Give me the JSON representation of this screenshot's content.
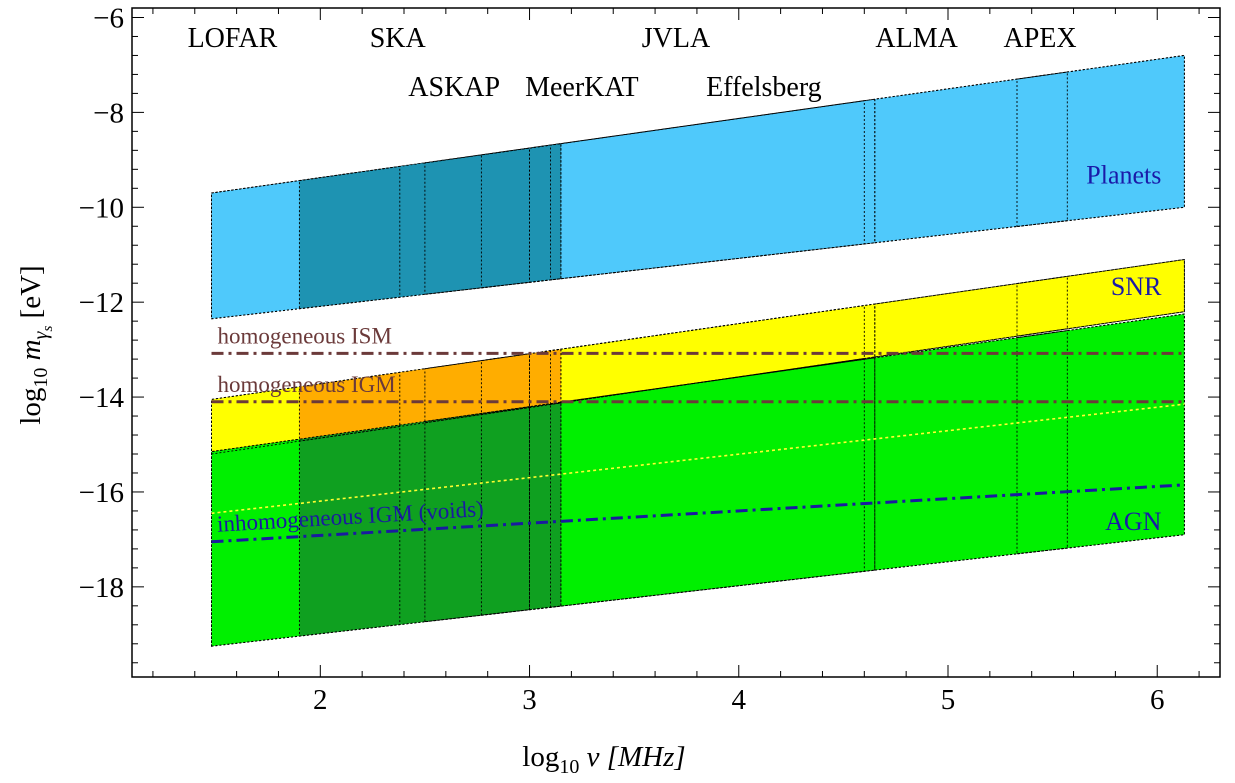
{
  "chart_data": {
    "type": "area",
    "title": "",
    "xlabel_parts": [
      "log",
      "10",
      " ν [MHz]"
    ],
    "ylabel_parts": [
      "log",
      "10",
      " m",
      "γ",
      "s",
      " [eV]"
    ],
    "xlim": [
      1.1,
      6.3
    ],
    "ylim": [
      -19.9,
      -5.8
    ],
    "x_ticks": [
      2,
      3,
      4,
      5,
      6
    ],
    "y_ticks": [
      -18,
      -16,
      -14,
      -12,
      -10,
      -8,
      -6
    ],
    "x_tick_labels": [
      "2",
      "3",
      "4",
      "5",
      "6"
    ],
    "y_tick_labels": [
      "−18",
      "−16",
      "−14",
      "−12",
      "−10",
      "−8",
      "−6"
    ],
    "telescopes": [
      {
        "name": "LOFAR",
        "x_range": [
          1.48,
          2.38
        ]
      },
      {
        "name": "SKA",
        "x_range": [
          1.9,
          3.15
        ]
      },
      {
        "name": "ASKAP",
        "x_range": [
          2.5,
          3.0
        ]
      },
      {
        "name": "MeerKAT",
        "x_range": [
          2.77,
          3.15
        ]
      },
      {
        "name": "JVLA",
        "x_range": [
          3.0,
          4.6
        ]
      },
      {
        "name": "Effelsberg",
        "x_range": [
          3.1,
          4.65
        ]
      },
      {
        "name": "ALMA",
        "x_range": [
          4.65,
          6.13
        ]
      },
      {
        "name": "APEX",
        "x_range": [
          5.33,
          5.57
        ]
      }
    ],
    "bands": [
      {
        "name": "Planets",
        "color": "#4fc9fb",
        "x": [
          1.48,
          6.13
        ],
        "low": [
          -12.35,
          -10.0
        ],
        "high": [
          -9.7,
          -6.8
        ]
      },
      {
        "name": "SNR",
        "color": "#ffff00",
        "x": [
          1.48,
          6.13
        ],
        "low": [
          -15.2,
          -12.2
        ],
        "high": [
          -14.05,
          -11.1
        ]
      },
      {
        "name": "AGN",
        "color": "#00f000",
        "x": [
          1.48,
          6.13
        ],
        "low": [
          -19.25,
          -16.9
        ],
        "high": [
          -15.15,
          -12.25
        ]
      }
    ],
    "overlaps": [
      {
        "with": "SKA",
        "band": "Planets",
        "color": "#1e93b2"
      },
      {
        "with": "SKA",
        "band": "SNR",
        "color": "#ffad00"
      },
      {
        "with": "SKA",
        "band": "AGN",
        "color": "#0fa020"
      }
    ],
    "lines": [
      {
        "name": "homogeneous ISM",
        "y": -13.08,
        "color": "#6b3a3a",
        "style": "dashdot"
      },
      {
        "name": "homogeneous IGM",
        "y": -14.1,
        "color": "#6b3a3a",
        "style": "dashdot"
      },
      {
        "name": "inhomogeneous IGM (voids)",
        "x": [
          1.48,
          6.13
        ],
        "y": [
          -17.05,
          -15.85
        ],
        "color": "#1a1aa0",
        "style": "dashdot"
      }
    ],
    "category_labels": [
      {
        "name": "Planets",
        "color": "#1a1aa8"
      },
      {
        "name": "SNR",
        "color": "#1a1aa8"
      },
      {
        "name": "AGN",
        "color": "#1a1aa8"
      }
    ]
  }
}
